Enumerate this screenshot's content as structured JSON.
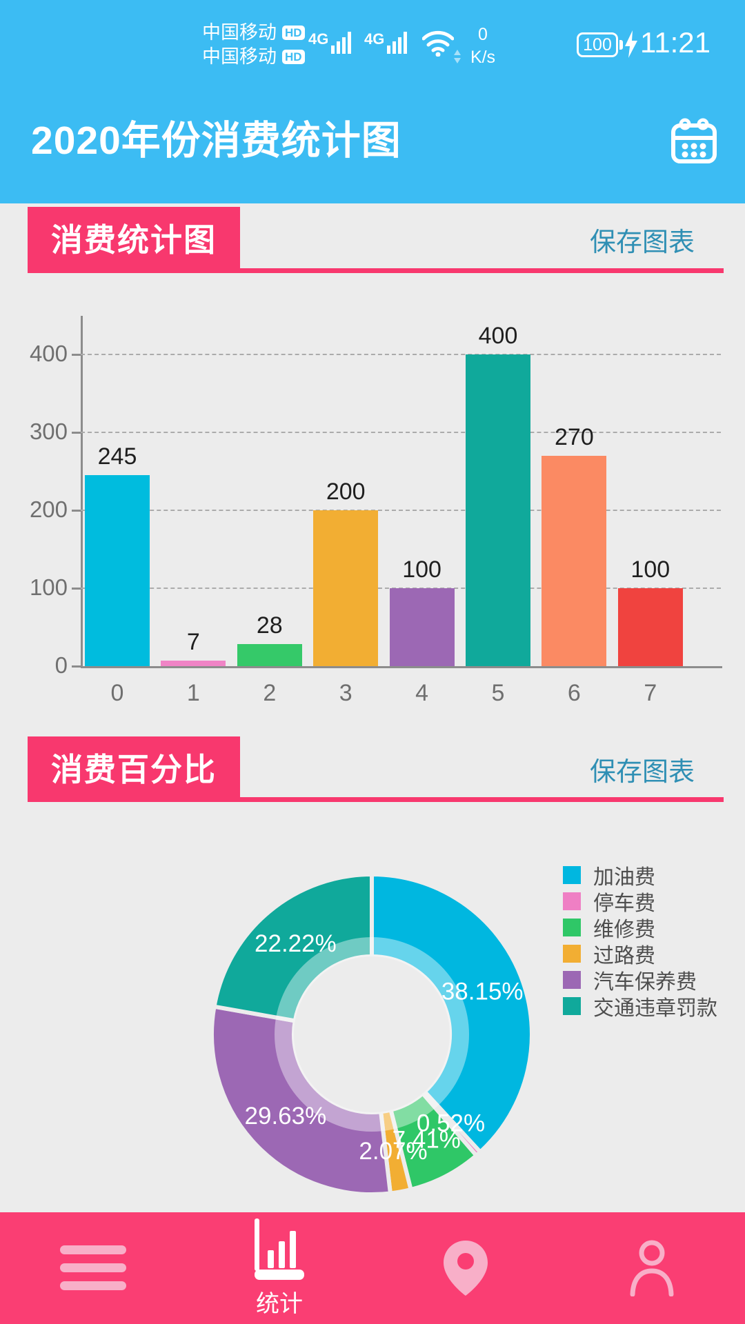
{
  "colors": {
    "header_bg": "#3CBCF3",
    "page_bg": "#ECECEC",
    "accent_pink": "#F8386E",
    "nav_pink": "#FA3E73",
    "nav_inactive": "#F8AFC8",
    "save_link": "#2F8FB4",
    "label_dark": "#1F1F1F",
    "legend_text": "#4E4E4E"
  },
  "status_bar": {
    "carrier_line1": "中国移动",
    "carrier_line2": "中国移动",
    "hd_label1": "HD",
    "hd_label2": "HD",
    "network_type_1": "4G",
    "network_type_2": "4G",
    "net_speed_value": "0",
    "net_speed_unit": "K/s",
    "battery_level": "100",
    "clock": "11:21"
  },
  "app_header": {
    "title": "2020年份消费统计图"
  },
  "bar_section": {
    "badge_title": "消费统计图",
    "save_button": "保存图表"
  },
  "pie_section": {
    "badge_title": "消费百分比",
    "save_button": "保存图表"
  },
  "bottom_nav": {
    "stats_label": "统计"
  },
  "chart_data": [
    {
      "type": "bar",
      "title": "消费统计图",
      "categories": [
        "0",
        "1",
        "2",
        "3",
        "4",
        "5",
        "6",
        "7"
      ],
      "values": [
        245,
        7,
        28,
        200,
        100,
        400,
        270,
        100
      ],
      "bar_colors": [
        "#00BCDE",
        "#F084C6",
        "#35C969",
        "#F2AE33",
        "#9C68B4",
        "#10A99B",
        "#FB8A63",
        "#F0433F"
      ],
      "yticks": [
        0,
        100,
        200,
        300,
        400
      ],
      "ylim": [
        0,
        450
      ],
      "grid": "dashed-horizontal",
      "xlabel": "",
      "ylabel": ""
    },
    {
      "type": "pie",
      "title": "消费百分比",
      "donut": true,
      "start": "top-clockwise",
      "labels": [
        "加油费",
        "停车费",
        "维修费",
        "过路费",
        "汽车保养费",
        "交通违章罚款"
      ],
      "values": [
        38.15,
        0.52,
        7.41,
        2.07,
        29.63,
        22.22
      ],
      "slice_colors": [
        "#00B7E0",
        "#EF7FC4",
        "#2FC767",
        "#F2AE33",
        "#9C68B4",
        "#10A99B"
      ],
      "legend_position": "right"
    }
  ]
}
